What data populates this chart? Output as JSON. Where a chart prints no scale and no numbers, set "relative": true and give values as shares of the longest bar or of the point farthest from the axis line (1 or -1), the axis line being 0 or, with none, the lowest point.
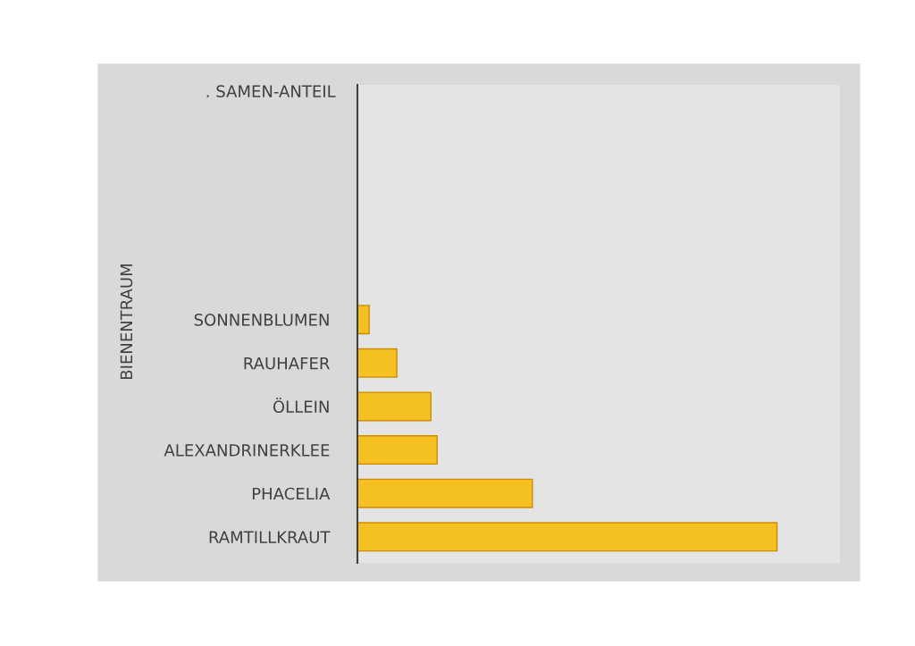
{
  "chart_data": {
    "type": "bar",
    "orientation": "horizontal",
    "relative": true,
    "title": ". SAMEN-ANTEIL",
    "ylabel": "BIENENTRAUM",
    "categories": [
      "SONNENBLUMEN",
      "RAUHAFER",
      "ÖLLEIN",
      "ALEXANDRINERKLEE",
      "PHACELIA",
      "RAMTILLKRAUT"
    ],
    "values": [
      0.028,
      0.094,
      0.175,
      0.19,
      0.417,
      1
    ],
    "color": "#f5c021"
  }
}
